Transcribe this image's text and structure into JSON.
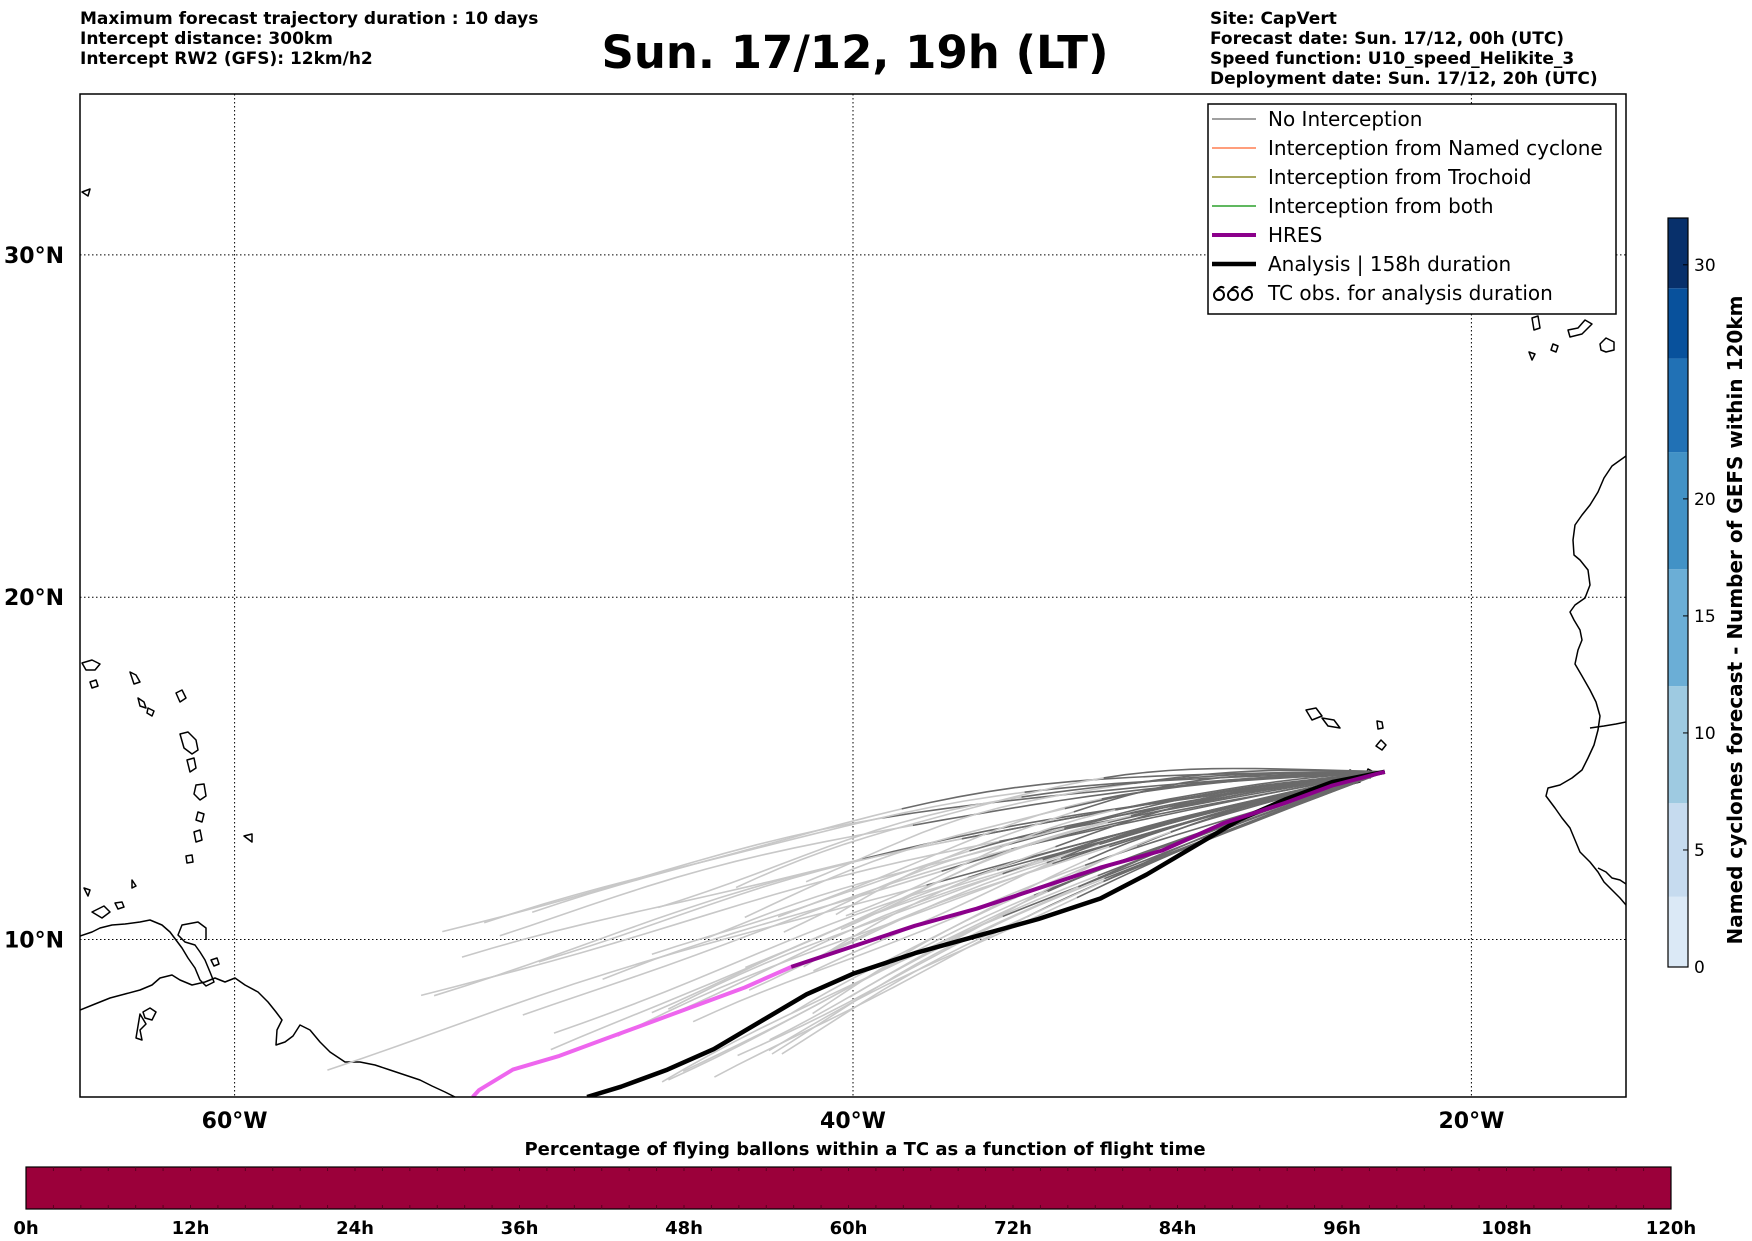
{
  "header": {
    "left_lines": [
      "Maximum forecast trajectory duration : 10 days",
      "Intercept distance: 300km",
      "Intercept RW2 (GFS):  12km/h2"
    ],
    "title": "Sun. 17/12, 19h (LT)",
    "right_lines": [
      "Site: CapVert",
      "Forecast date: Sun. 17/12, 00h (UTC)",
      "Speed function: U10_speed_Helikite_3",
      "Deployment date: Sun. 17/12, 20h (UTC)"
    ]
  },
  "map": {
    "lon_range": [
      -65,
      -15
    ],
    "lat_range": [
      5.4,
      34.7
    ],
    "lat_ticks": [
      {
        "value": 30,
        "label": "30°N"
      },
      {
        "value": 20,
        "label": "20°N"
      },
      {
        "value": 10,
        "label": "10°N"
      }
    ],
    "lon_ticks": [
      {
        "value": -60,
        "label": "60°W"
      },
      {
        "value": -40,
        "label": "40°W"
      },
      {
        "value": -20,
        "label": "20°W"
      }
    ],
    "launch_site": {
      "lon": -22.8,
      "lat": 14.9
    }
  },
  "legend": {
    "items": [
      {
        "label": "No Interception",
        "color": "#808080",
        "width": 1.5,
        "kind": "line"
      },
      {
        "label": "Interception from Named cyclone",
        "color": "#ff7f50",
        "width": 1.5,
        "kind": "line"
      },
      {
        "label": "Interception from Trochoid",
        "color": "#8b8b2a",
        "width": 1.5,
        "kind": "line"
      },
      {
        "label": "Interception from both",
        "color": "#2ca02c",
        "width": 1.5,
        "kind": "line"
      },
      {
        "label": "HRES",
        "color": "#8b008b",
        "width": 4,
        "kind": "line"
      },
      {
        "label": "Analysis | 158h duration",
        "color": "#000000",
        "width": 4.5,
        "kind": "line"
      },
      {
        "label": "TC obs. for analysis duration",
        "color": "#000000",
        "width": 2,
        "kind": "symbol"
      }
    ]
  },
  "chart_data": {
    "type": "line",
    "title": "Sun. 17/12, 19h (LT)",
    "series": [
      {
        "name": "HRES",
        "points": [
          [
            -22.8,
            14.9
          ],
          [
            -24.5,
            14.5
          ],
          [
            -26,
            14
          ],
          [
            -28,
            13.4
          ],
          [
            -30,
            12.6
          ],
          [
            -32,
            12.1
          ],
          [
            -34,
            11.5
          ],
          [
            -36,
            10.9
          ],
          [
            -38,
            10.4
          ],
          [
            -40,
            9.8
          ],
          [
            -42,
            9.2
          ],
          [
            -43.5,
            8.6
          ],
          [
            -45,
            8.1
          ],
          [
            -46.5,
            7.6
          ],
          [
            -48,
            7.1
          ],
          [
            -49.5,
            6.6
          ],
          [
            -51,
            6.2
          ],
          [
            -52.1,
            5.6
          ],
          [
            -52.3,
            5.4
          ]
        ]
      },
      {
        "name": "Analysis | 158h duration",
        "points": [
          [
            -22.8,
            14.9
          ],
          [
            -24.5,
            14.6
          ],
          [
            -26,
            14.1
          ],
          [
            -27.5,
            13.5
          ],
          [
            -29,
            12.7
          ],
          [
            -30.5,
            11.9
          ],
          [
            -32,
            11.2
          ],
          [
            -34,
            10.6
          ],
          [
            -36,
            10.1
          ],
          [
            -38,
            9.6
          ],
          [
            -40,
            9.0
          ],
          [
            -41.5,
            8.4
          ],
          [
            -43,
            7.6
          ],
          [
            -44.5,
            6.8
          ],
          [
            -46,
            6.2
          ],
          [
            -47.5,
            5.7
          ],
          [
            -48.6,
            5.4
          ]
        ]
      }
    ],
    "colorbar_right": {
      "label": "Named cyclones forecast - Number of GEFS within 120km",
      "ticks": [
        0,
        5,
        10,
        15,
        20,
        30
      ],
      "range": [
        0,
        32
      ],
      "colors": [
        "#dbe9f6",
        "#c6dbef",
        "#9ecae1",
        "#6baed6",
        "#4292c6",
        "#2171b5",
        "#08519c",
        "#08306b"
      ]
    },
    "colorbar_bottom": {
      "label": "Percentage of flying ballons within a TC as a function of flight time",
      "ticks": [
        "0h",
        "12h",
        "24h",
        "36h",
        "48h",
        "60h",
        "72h",
        "84h",
        "96h",
        "108h",
        "120h"
      ],
      "color": "#9b003a"
    }
  }
}
